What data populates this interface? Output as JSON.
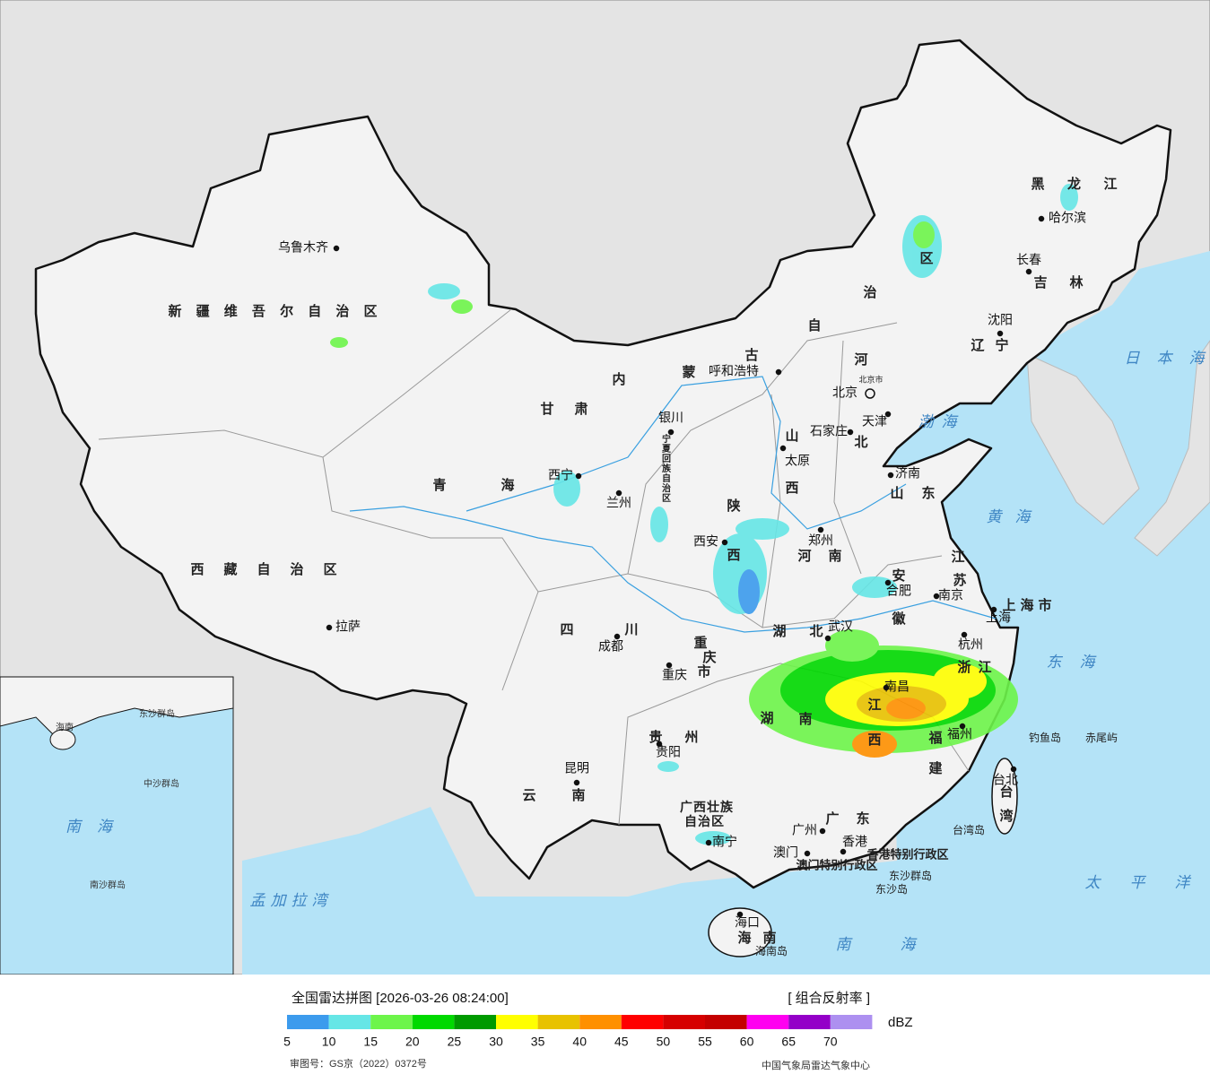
{
  "map": {
    "regions": [
      "新疆维吾尔自治区",
      "西藏自治区",
      "青海",
      "甘肃",
      "内蒙古自治区",
      "宁夏回族自治区",
      "河北",
      "山西",
      "陕西",
      "山东",
      "辽宁",
      "吉林",
      "黑龙江",
      "河南",
      "四川",
      "重庆市",
      "湖北",
      "安徽",
      "江苏",
      "上海市",
      "浙江",
      "江西",
      "湖南",
      "贵州",
      "云南",
      "广西壮族自治区",
      "福建",
      "广东",
      "海南",
      "台湾"
    ],
    "cities": [
      "乌鲁木齐",
      "拉萨",
      "西宁",
      "兰州",
      "呼和浩特",
      "银川",
      "北京",
      "天津",
      "石家庄",
      "太原",
      "济南",
      "沈阳",
      "长春",
      "哈尔滨",
      "西安",
      "郑州",
      "成都",
      "重庆",
      "武汉",
      "合肥",
      "南京",
      "上海",
      "杭州",
      "南昌",
      "贵阳",
      "昆明",
      "南宁",
      "福州",
      "广州",
      "澳门",
      "香港",
      "海口",
      "台北"
    ],
    "small_labels": [
      "北京市",
      "香港特别行政区",
      "澳门特别行政区",
      "东沙群岛",
      "东沙岛",
      "海南岛",
      "台湾岛",
      "钓鱼岛",
      "赤尾屿"
    ],
    "seas": [
      "日本海",
      "渤海",
      "黄海",
      "东海",
      "太平洋",
      "南海",
      "孟加拉湾"
    ],
    "inset_labels": [
      "海南",
      "东沙群岛",
      "中沙群岛",
      "南海",
      "南沙群岛"
    ]
  },
  "footer": {
    "title": "全国雷达拼图 [2026-03-26 08:24:00]",
    "product": "[ 组合反射率 ]",
    "unit": "dBZ",
    "approval": "审图号：GS京（2022）0372号",
    "source": "中国气象局雷达气象中心"
  },
  "legend": {
    "ticks": [
      5,
      10,
      15,
      20,
      25,
      30,
      35,
      40,
      45,
      50,
      55,
      60,
      65,
      70
    ],
    "colors": [
      "#3c9bed",
      "#66e6e6",
      "#6df54a",
      "#00d900",
      "#009a00",
      "#ffff00",
      "#e8c200",
      "#ff9000",
      "#ff0000",
      "#d60000",
      "#c40000",
      "#ff00f0",
      "#9400c8",
      "#ad90f0"
    ]
  }
}
